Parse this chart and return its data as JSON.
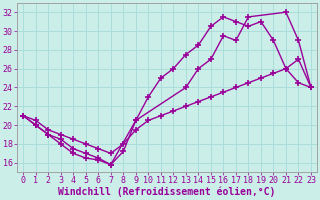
{
  "background_color": "#cceee8",
  "grid_color": "#aaddda",
  "line_color": "#990099",
  "marker": "+",
  "markersize": 5,
  "linewidth": 1.0,
  "xlabel": "Windchill (Refroidissement éolien,°C)",
  "xlabel_fontsize": 7,
  "tick_fontsize": 6,
  "xlim": [
    -0.5,
    23.5
  ],
  "ylim": [
    15,
    33
  ],
  "xticks": [
    0,
    1,
    2,
    3,
    4,
    5,
    6,
    7,
    8,
    9,
    10,
    11,
    12,
    13,
    14,
    15,
    16,
    17,
    18,
    19,
    20,
    21,
    22,
    23
  ],
  "yticks": [
    16,
    18,
    20,
    22,
    24,
    26,
    28,
    30,
    32
  ],
  "series": [
    {
      "x": [
        0,
        1,
        2,
        3,
        4,
        5,
        6,
        7,
        8,
        9,
        13,
        14,
        15,
        16,
        17,
        18,
        21,
        22,
        23
      ],
      "y": [
        21,
        20,
        19,
        18,
        17,
        16.5,
        16.3,
        15.8,
        17.2,
        20.5,
        24,
        26,
        27,
        29.5,
        29,
        31.5,
        32,
        29,
        24
      ]
    },
    {
      "x": [
        0,
        1,
        2,
        3,
        4,
        5,
        6,
        7,
        9,
        10,
        11,
        12,
        13,
        14,
        15,
        16,
        17,
        18,
        19,
        20,
        21,
        22,
        23
      ],
      "y": [
        21,
        20,
        19,
        18.5,
        17.5,
        17,
        16.5,
        15.8,
        20.5,
        23,
        25,
        26,
        27.5,
        28.5,
        30.5,
        31.5,
        31,
        30.5,
        31,
        29,
        26,
        24.5,
        24
      ]
    },
    {
      "x": [
        0,
        1,
        2,
        3,
        4,
        5,
        6,
        7,
        8,
        9,
        10,
        11,
        12,
        13,
        14,
        15,
        16,
        17,
        18,
        19,
        20,
        21,
        22,
        23
      ],
      "y": [
        21,
        20.5,
        19.5,
        19,
        18.5,
        18,
        17.5,
        17,
        18,
        19.5,
        20.5,
        21,
        21.5,
        22,
        22.5,
        23,
        23.5,
        24,
        24.5,
        25,
        25.5,
        26,
        27,
        24
      ]
    }
  ]
}
